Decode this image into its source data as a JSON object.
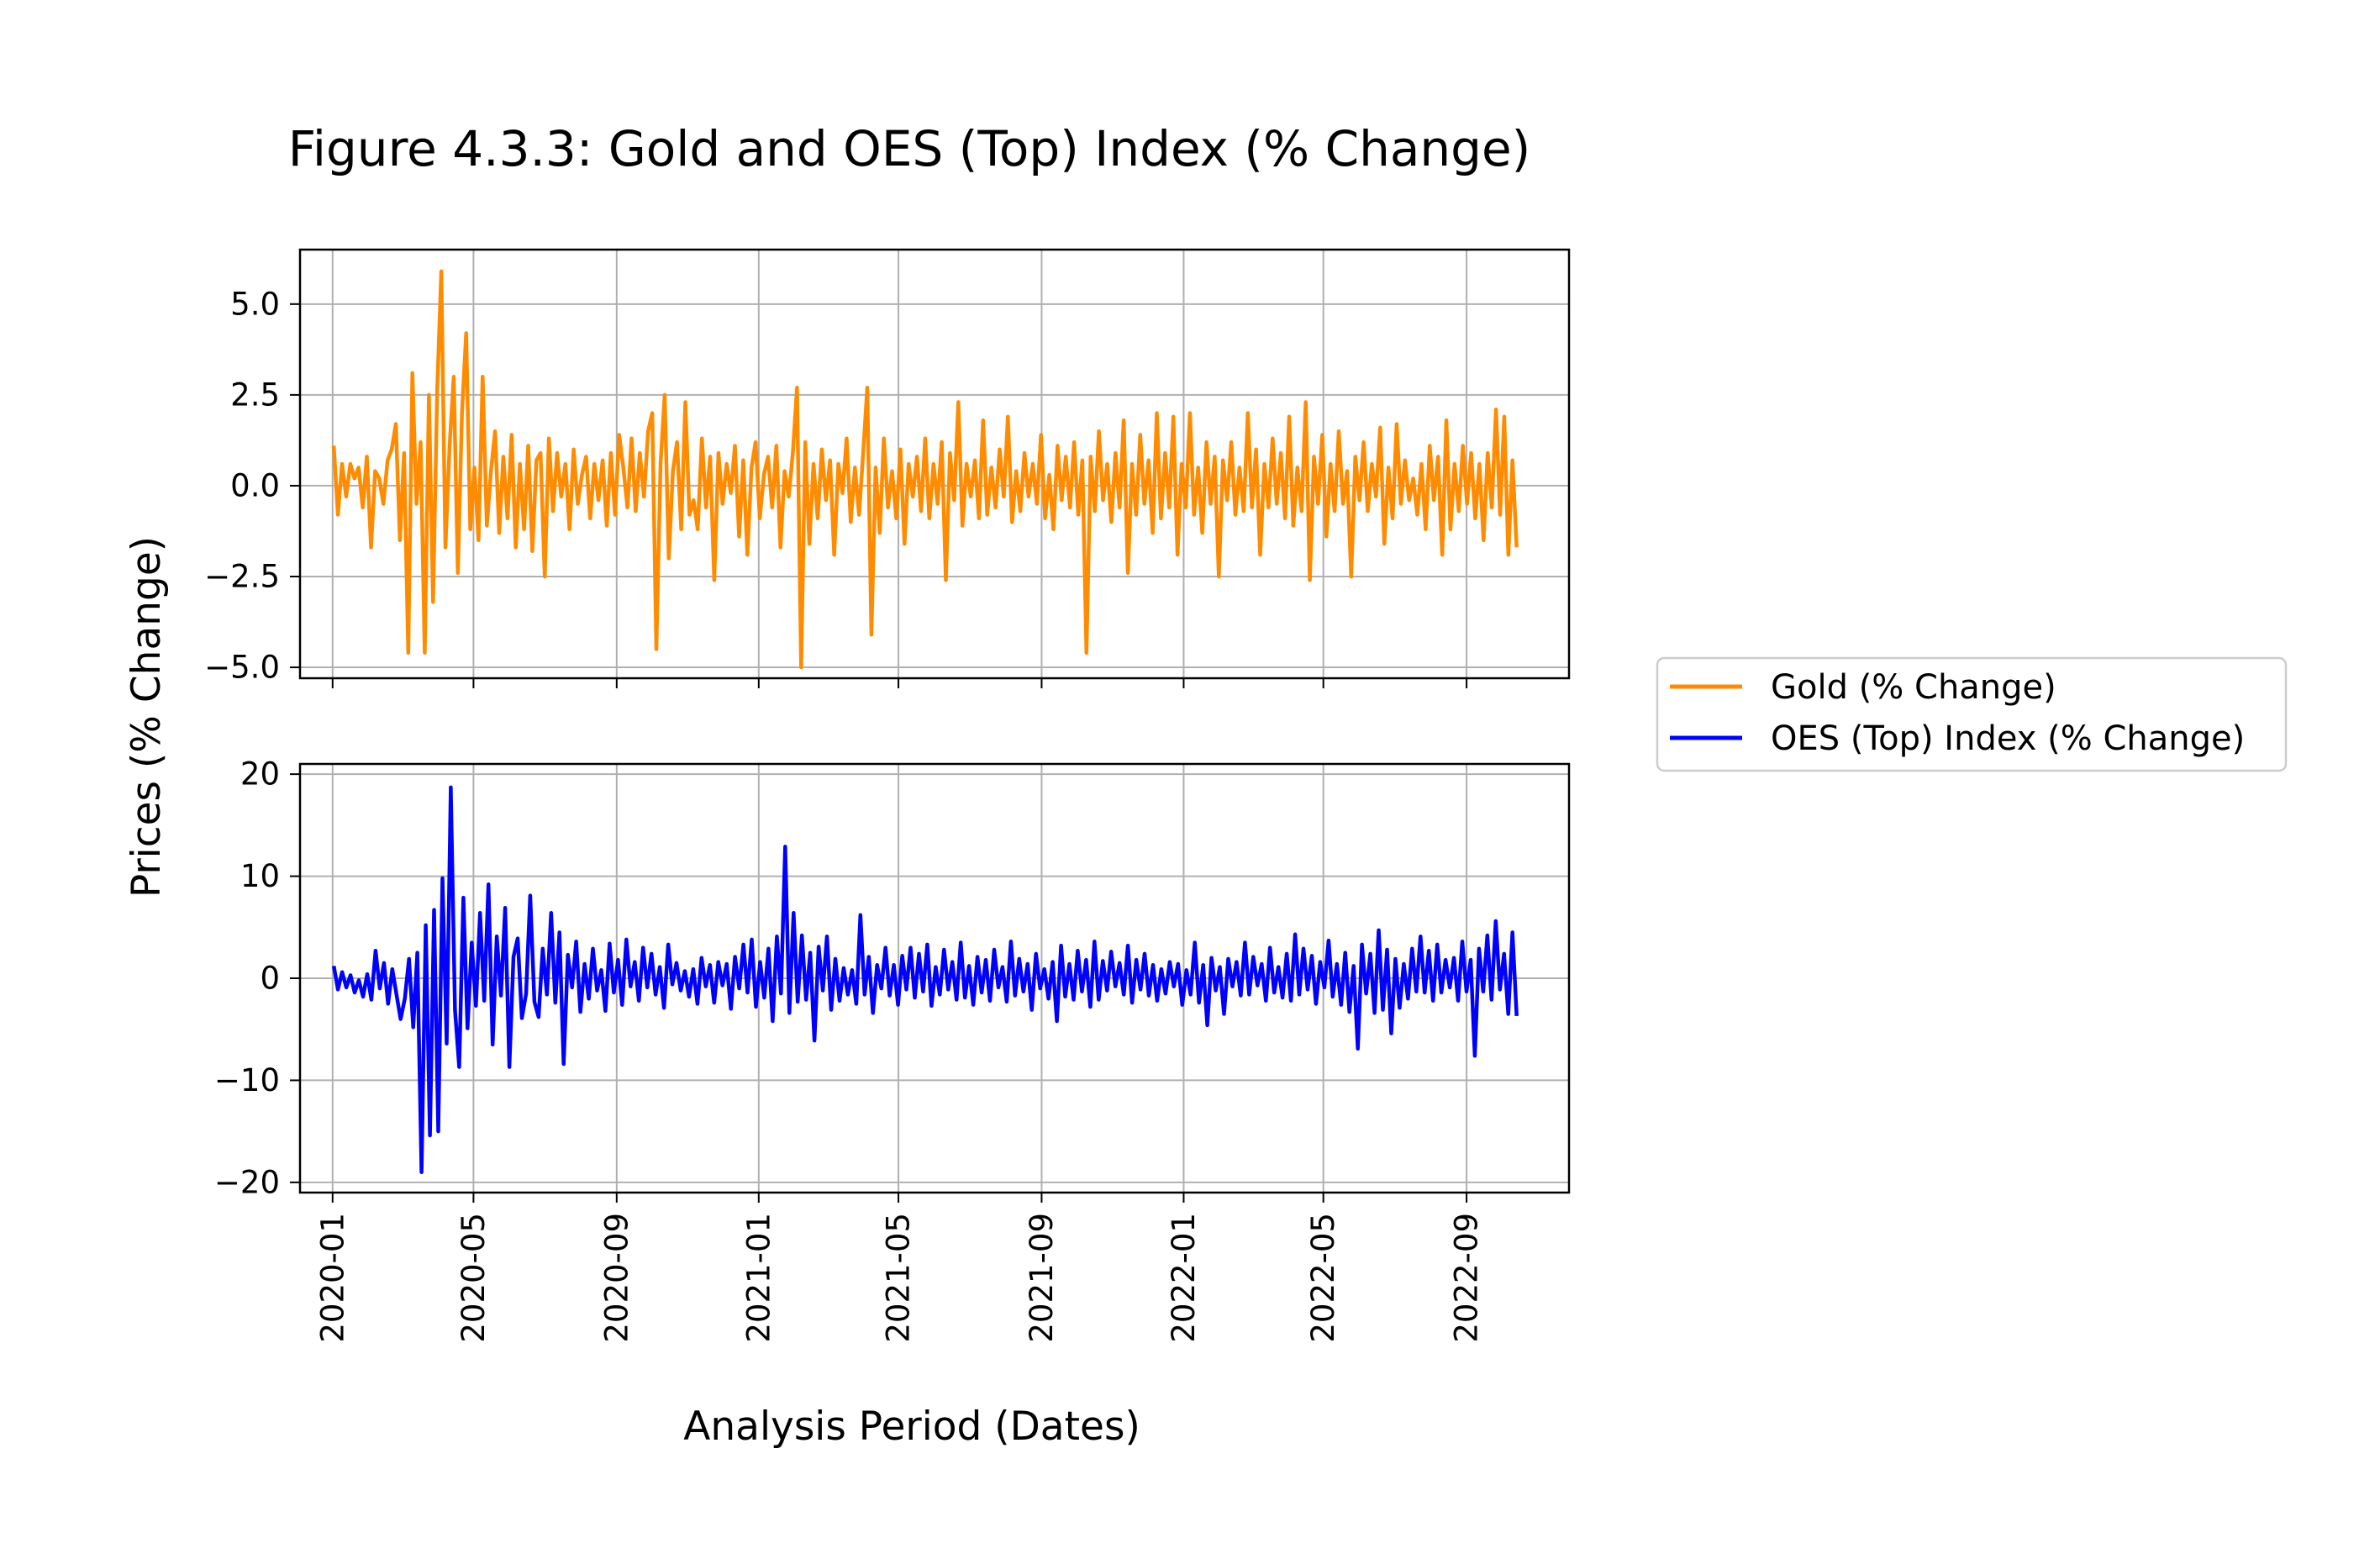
{
  "title": "Figure 4.3.3: Gold and OES (Top) Index (% Change)",
  "xlabel": "Analysis Period (Dates)",
  "ylabel": "Prices (% Change)",
  "legend": {
    "placement": "right-center",
    "entries": [
      {
        "label": "Gold (% Change)",
        "color": "#ff8c00"
      },
      {
        "label": "OES (Top) Index (% Change)",
        "color": "#0000ff"
      }
    ]
  },
  "chart_data": [
    {
      "type": "line",
      "panel": "top",
      "grid": true,
      "xlim": [
        "2019-12-04",
        "2022-11-28"
      ],
      "ylim": [
        -5.3,
        6.5
      ],
      "x_ticks": [
        "2020-01",
        "2020-05",
        "2020-09",
        "2021-01",
        "2021-05",
        "2021-09",
        "2022-01",
        "2022-05",
        "2022-09"
      ],
      "y_ticks": [
        -5.0,
        -2.5,
        0.0,
        2.5,
        5.0
      ],
      "y_tick_labels": [
        "−5.0",
        "−2.5",
        "0.0",
        "2.5",
        "5.0"
      ],
      "series": [
        {
          "name": "Gold (% Change)",
          "color": "#ff8c00",
          "x_start": "2020-01-02",
          "x_end": "2022-10-14",
          "values": [
            1.1,
            -0.8,
            0.6,
            -0.3,
            0.6,
            0.2,
            0.5,
            -0.6,
            0.8,
            -1.7,
            0.4,
            0.2,
            -0.5,
            0.7,
            1.0,
            1.7,
            -1.5,
            0.9,
            -4.6,
            3.1,
            -0.5,
            1.2,
            -4.6,
            2.5,
            -3.2,
            2.6,
            5.9,
            -1.7,
            1.1,
            3.0,
            -2.4,
            2.0,
            4.2,
            -1.2,
            0.5,
            -1.5,
            3.0,
            -1.1,
            0.4,
            1.5,
            -1.3,
            0.8,
            -0.9,
            1.4,
            -1.7,
            0.6,
            -1.2,
            1.1,
            -1.8,
            0.7,
            0.9,
            -2.5,
            1.3,
            -0.7,
            0.9,
            -0.3,
            0.6,
            -1.2,
            1.0,
            -0.5,
            0.3,
            0.8,
            -0.9,
            0.6,
            -0.4,
            0.7,
            -1.1,
            0.9,
            -0.8,
            1.4,
            0.5,
            -0.6,
            1.3,
            -0.7,
            0.9,
            -0.3,
            1.5,
            2.0,
            -4.5,
            0.6,
            2.5,
            -2.0,
            0.4,
            1.2,
            -1.2,
            2.3,
            -0.8,
            -0.4,
            -1.2,
            1.3,
            -0.6,
            0.8,
            -2.6,
            0.9,
            -0.5,
            0.6,
            -0.2,
            1.1,
            -1.4,
            0.7,
            -1.9,
            0.5,
            1.2,
            -0.9,
            0.3,
            0.8,
            -0.6,
            1.1,
            -1.7,
            0.4,
            -0.3,
            0.9,
            2.7,
            -5.0,
            1.2,
            -1.6,
            0.6,
            -0.9,
            1.0,
            -0.4,
            0.7,
            -1.9,
            0.6,
            -0.2,
            1.3,
            -1.0,
            0.5,
            -0.8,
            0.9,
            2.7,
            -4.1,
            0.5,
            -1.3,
            1.3,
            -0.6,
            0.4,
            -0.9,
            1.0,
            -1.6,
            0.6,
            -0.3,
            0.8,
            -0.7,
            1.3,
            -0.9,
            0.6,
            -0.5,
            1.2,
            -2.6,
            0.9,
            -0.4,
            2.3,
            -1.1,
            0.6,
            -0.3,
            0.7,
            -0.9,
            1.8,
            -0.8,
            0.5,
            -0.6,
            1.0,
            -0.3,
            1.9,
            -1.0,
            0.4,
            -0.7,
            0.9,
            -0.3,
            0.6,
            -0.5,
            1.4,
            -0.9,
            0.3,
            -1.2,
            1.1,
            -0.4,
            0.8,
            -0.6,
            1.2,
            -0.8,
            0.7,
            -4.6,
            0.8,
            -0.7,
            1.5,
            -0.4,
            0.6,
            -1.0,
            0.9,
            -0.6,
            1.8,
            -2.4,
            0.6,
            -0.8,
            1.4,
            -0.5,
            0.7,
            -1.3,
            2.0,
            -0.9,
            0.9,
            -0.6,
            1.9,
            -1.9,
            0.6,
            -0.6,
            2.0,
            -0.8,
            0.5,
            -1.3,
            1.2,
            -0.5,
            0.8,
            -2.5,
            0.7,
            -0.4,
            1.2,
            -0.8,
            0.5,
            -0.7,
            2.0,
            -0.6,
            1.0,
            -1.9,
            0.6,
            -0.6,
            1.3,
            -0.5,
            0.9,
            -0.9,
            1.9,
            -1.1,
            0.5,
            -0.7,
            2.3,
            -2.6,
            0.8,
            -0.5,
            1.4,
            -1.4,
            0.6,
            -0.7,
            1.5,
            -0.5,
            0.4,
            -2.5,
            0.8,
            -0.4,
            1.2,
            -0.7,
            0.6,
            -0.3,
            1.6,
            -1.6,
            0.5,
            -0.9,
            1.7,
            -0.5,
            0.7,
            -0.4,
            0.2,
            -0.8,
            0.6,
            -1.2,
            1.1,
            -0.4,
            0.8,
            -1.9,
            1.8,
            -1.2,
            0.6,
            -0.7,
            1.1,
            -0.5,
            0.9,
            -0.9,
            0.6,
            -1.5,
            0.9,
            -0.6,
            2.1,
            -0.8,
            1.9,
            -1.9,
            0.7,
            -1.7
          ]
        }
      ]
    },
    {
      "type": "line",
      "panel": "bottom",
      "grid": true,
      "xlim": [
        "2019-12-04",
        "2022-11-28"
      ],
      "ylim": [
        -21,
        21
      ],
      "x_ticks": [
        "2020-01",
        "2020-05",
        "2020-09",
        "2021-01",
        "2021-05",
        "2021-09",
        "2022-01",
        "2022-05",
        "2022-09"
      ],
      "y_ticks": [
        -20,
        -10,
        0,
        10,
        20
      ],
      "y_tick_labels": [
        "−20",
        "−10",
        "0",
        "10",
        "20"
      ],
      "series": [
        {
          "name": "OES (Top) Index (% Change)",
          "color": "#0000ff",
          "x_start": "2020-01-02",
          "x_end": "2022-10-14",
          "values": [
            1.2,
            -1.1,
            0.6,
            -0.9,
            0.3,
            -1.4,
            -0.2,
            -1.8,
            0.4,
            -2.1,
            2.7,
            -1.0,
            1.5,
            -2.5,
            0.9,
            -1.6,
            -4.0,
            -2.0,
            1.9,
            -4.8,
            2.5,
            -19.0,
            5.2,
            -15.4,
            6.7,
            -15.0,
            9.8,
            -6.4,
            18.7,
            -3.1,
            -8.7,
            7.9,
            -4.9,
            3.5,
            -2.7,
            6.4,
            -2.2,
            9.2,
            -6.5,
            4.1,
            -1.7,
            6.9,
            -8.7,
            2.1,
            3.9,
            -3.9,
            -1.5,
            8.1,
            -2.3,
            -3.8,
            2.9,
            -1.6,
            6.4,
            -2.4,
            4.5,
            -8.4,
            2.3,
            -0.9,
            3.6,
            -3.3,
            1.4,
            -2.0,
            2.9,
            -1.2,
            0.8,
            -3.2,
            3.4,
            -1.4,
            1.8,
            -2.6,
            3.8,
            -0.8,
            1.6,
            -2.2,
            3.0,
            -0.9,
            2.4,
            -1.6,
            1.1,
            -2.9,
            3.3,
            -0.6,
            1.5,
            -1.2,
            0.7,
            -1.8,
            0.9,
            -2.5,
            2.0,
            -0.8,
            1.3,
            -2.4,
            1.6,
            -0.7,
            1.4,
            -3.0,
            2.1,
            -1.0,
            3.3,
            -1.4,
            3.8,
            -2.8,
            1.6,
            -1.9,
            2.9,
            -4.2,
            4.1,
            -1.5,
            12.9,
            -3.4,
            6.4,
            -2.3,
            4.2,
            -2.1,
            2.5,
            -6.1,
            3.1,
            -1.2,
            4.1,
            -3.1,
            1.9,
            -2.2,
            1.0,
            -1.6,
            0.8,
            -2.5,
            6.2,
            -1.6,
            2.1,
            -3.4,
            1.3,
            -1.0,
            3.0,
            -1.7,
            1.3,
            -2.6,
            2.2,
            -1.1,
            3.0,
            -1.9,
            2.4,
            -1.3,
            3.3,
            -2.7,
            1.1,
            -1.6,
            2.8,
            -1.1,
            1.6,
            -2.1,
            3.5,
            -1.9,
            1.2,
            -2.6,
            2.1,
            -1.4,
            1.8,
            -2.2,
            2.8,
            -0.9,
            1.1,
            -2.3,
            3.6,
            -1.7,
            1.9,
            -1.3,
            1.4,
            -3.1,
            2.4,
            -1.0,
            0.9,
            -2.0,
            1.6,
            -4.2,
            3.2,
            -1.8,
            1.4,
            -2.1,
            2.7,
            -1.3,
            1.8,
            -2.8,
            3.6,
            -2.1,
            1.7,
            -1.2,
            2.6,
            -0.8,
            1.5,
            -1.6,
            3.2,
            -2.4,
            1.8,
            -1.1,
            2.4,
            -1.7,
            1.3,
            -2.2,
            0.9,
            -1.5,
            1.6,
            -0.8,
            1.4,
            -2.6,
            0.8,
            -1.6,
            3.5,
            -2.4,
            1.3,
            -4.6,
            2.0,
            -1.2,
            1.1,
            -3.5,
            1.9,
            -0.8,
            1.6,
            -1.7,
            3.5,
            -1.6,
            2.1,
            -0.7,
            1.4,
            -2.2,
            3.0,
            -1.4,
            1.1,
            -1.9,
            2.4,
            -2.2,
            4.3,
            -1.6,
            2.9,
            -1.1,
            2.2,
            -2.5,
            1.6,
            -0.9,
            3.7,
            -1.8,
            1.4,
            -2.6,
            2.5,
            -3.3,
            1.2,
            -6.9,
            3.3,
            -1.5,
            2.4,
            -3.4,
            4.7,
            -3.1,
            2.8,
            -5.4,
            1.9,
            -2.9,
            1.4,
            -2.0,
            2.9,
            -1.3,
            4.1,
            -1.4,
            2.7,
            -2.2,
            3.3,
            -1.4,
            1.8,
            -0.9,
            2.0,
            -2.2,
            3.6,
            -1.3,
            1.8,
            -7.6,
            2.9,
            -1.3,
            4.2,
            -2.1,
            5.6,
            -1.1,
            2.4,
            -3.5,
            4.5,
            -3.7
          ]
        }
      ]
    }
  ]
}
